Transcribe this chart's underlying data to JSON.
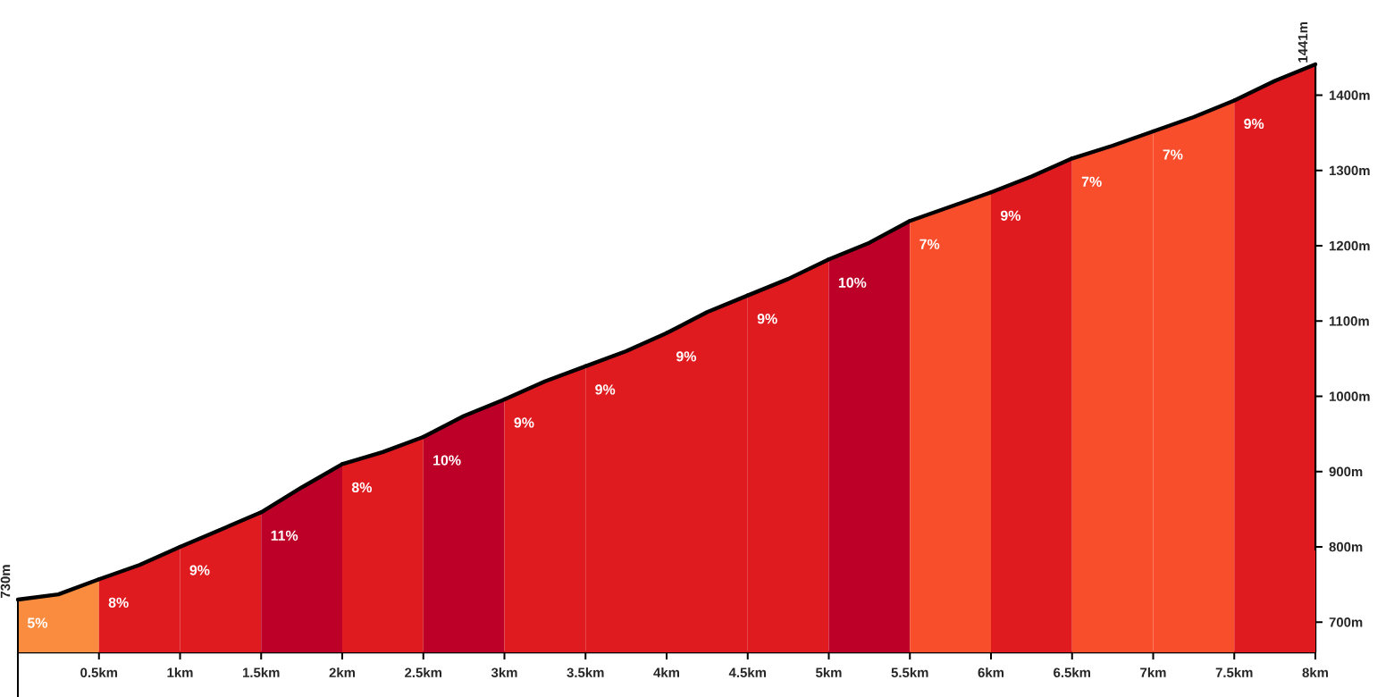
{
  "chart_data": {
    "type": "area",
    "xlim": [
      0,
      8
    ],
    "ylim": [
      660,
      1441
    ],
    "xticks": [
      {
        "value": 0.5,
        "label": "0.5km"
      },
      {
        "value": 1,
        "label": "1km"
      },
      {
        "value": 1.5,
        "label": "1.5km"
      },
      {
        "value": 2,
        "label": "2km"
      },
      {
        "value": 2.5,
        "label": "2.5km"
      },
      {
        "value": 3,
        "label": "3km"
      },
      {
        "value": 3.5,
        "label": "3.5km"
      },
      {
        "value": 4,
        "label": "4km"
      },
      {
        "value": 4.5,
        "label": "4.5km"
      },
      {
        "value": 5,
        "label": "5km"
      },
      {
        "value": 5.5,
        "label": "5.5km"
      },
      {
        "value": 6,
        "label": "6km"
      },
      {
        "value": 6.5,
        "label": "6.5km"
      },
      {
        "value": 7,
        "label": "7km"
      },
      {
        "value": 7.5,
        "label": "7.5km"
      },
      {
        "value": 8,
        "label": "8km"
      }
    ],
    "yticks": [
      {
        "value": 700,
        "label": "700m"
      },
      {
        "value": 800,
        "label": "800m"
      },
      {
        "value": 900,
        "label": "900m"
      },
      {
        "value": 1000,
        "label": "1000m"
      },
      {
        "value": 1100,
        "label": "1100m"
      },
      {
        "value": 1200,
        "label": "1200m"
      },
      {
        "value": 1300,
        "label": "1300m"
      },
      {
        "value": 1400,
        "label": "1400m"
      }
    ],
    "annotations": [
      {
        "text": "730m",
        "x": 0,
        "y": 730
      },
      {
        "text": "1441m",
        "x": 8,
        "y": 1441
      },
      {
        "text": "5%",
        "x": 0,
        "y": 730
      },
      {
        "text": "8%",
        "x": 0.5,
        "y": 757
      },
      {
        "text": "9%",
        "x": 1,
        "y": 800
      },
      {
        "text": "11%",
        "x": 1.5,
        "y": 846
      },
      {
        "text": "8%",
        "x": 2,
        "y": 910
      },
      {
        "text": "10%",
        "x": 2.5,
        "y": 946
      },
      {
        "text": "9%",
        "x": 3,
        "y": 996
      },
      {
        "text": "9%",
        "x": 3.5,
        "y": 1040
      },
      {
        "text": "9%",
        "x": 4,
        "y": 1084
      },
      {
        "text": "9%",
        "x": 4.5,
        "y": 1134
      },
      {
        "text": "10%",
        "x": 5,
        "y": 1182
      },
      {
        "text": "7%",
        "x": 5.5,
        "y": 1233
      },
      {
        "text": "9%",
        "x": 6,
        "y": 1271
      },
      {
        "text": "7%",
        "x": 6.5,
        "y": 1316
      },
      {
        "text": "7%",
        "x": 7,
        "y": 1352
      },
      {
        "text": "9%",
        "x": 7.5,
        "y": 1393
      }
    ],
    "series": [
      {
        "color": "#f98c3f",
        "x": [
          0,
          0.25,
          0.5
        ],
        "values": [
          730,
          737,
          757
        ]
      },
      {
        "color": "#e01b1f",
        "x": [
          0.5,
          0.75,
          1
        ],
        "values": [
          757,
          776,
          800
        ]
      },
      {
        "color": "#e01b1f",
        "x": [
          1,
          1.25,
          1.5
        ],
        "values": [
          800,
          823,
          846
        ]
      },
      {
        "color": "#bd0027",
        "x": [
          1.5,
          1.75,
          2
        ],
        "values": [
          846,
          879,
          910
        ]
      },
      {
        "color": "#e01b1f",
        "x": [
          2,
          2.25,
          2.5
        ],
        "values": [
          910,
          926,
          946
        ]
      },
      {
        "color": "#bd0027",
        "x": [
          2.5,
          2.75,
          3
        ],
        "values": [
          946,
          974,
          996
        ]
      },
      {
        "color": "#e01b1f",
        "x": [
          3,
          3.25,
          3.5
        ],
        "values": [
          996,
          1020,
          1040
        ]
      },
      {
        "color": "#e01b1f",
        "x": [
          3.5,
          3.75,
          4
        ],
        "values": [
          1040,
          1060,
          1084
        ]
      },
      {
        "color": "#e01b1f",
        "x": [
          4,
          4.25,
          4.5
        ],
        "values": [
          1084,
          1112,
          1134
        ]
      },
      {
        "color": "#e01b1f",
        "x": [
          4.5,
          4.75,
          5
        ],
        "values": [
          1134,
          1156,
          1182
        ]
      },
      {
        "color": "#bd0027",
        "x": [
          5,
          5.25,
          5.5
        ],
        "values": [
          1182,
          1204,
          1233
        ]
      },
      {
        "color": "#f94e2c",
        "x": [
          5.5,
          5.75,
          6
        ],
        "values": [
          1233,
          1252,
          1271
        ]
      },
      {
        "color": "#e01b1f",
        "x": [
          6,
          6.25,
          6.5
        ],
        "values": [
          1271,
          1292,
          1316
        ]
      },
      {
        "color": "#f94e2c",
        "x": [
          6.5,
          6.75,
          7
        ],
        "values": [
          1316,
          1333,
          1352
        ]
      },
      {
        "color": "#f94e2c",
        "x": [
          7,
          7.25,
          7.5
        ],
        "values": [
          1352,
          1371,
          1393
        ]
      },
      {
        "color": "#e01b1f",
        "x": [
          7.5,
          7.75,
          8
        ],
        "values": [
          1393,
          1419,
          1441
        ]
      }
    ]
  }
}
